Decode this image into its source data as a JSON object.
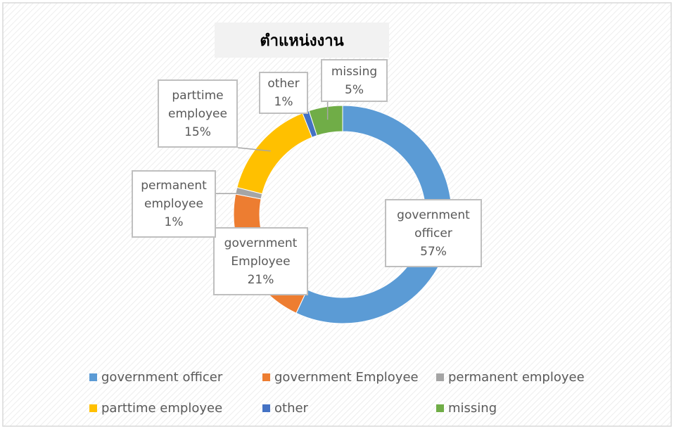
{
  "chart_data": {
    "type": "donut",
    "title": "ตำแหน่งงาน",
    "categories": [
      "government officer",
      "government Employee",
      "permanent employee",
      "parttime employee",
      "other",
      "missing"
    ],
    "values": [
      57,
      21,
      1,
      15,
      1,
      5
    ],
    "value_labels": [
      "57%",
      "21%",
      "1%",
      "15%",
      "1%",
      "5%"
    ],
    "colors": [
      "#5b9bd5",
      "#ed7d31",
      "#a5a5a5",
      "#ffc000",
      "#4472c4",
      "#70ad47"
    ],
    "legend": "bottom"
  }
}
